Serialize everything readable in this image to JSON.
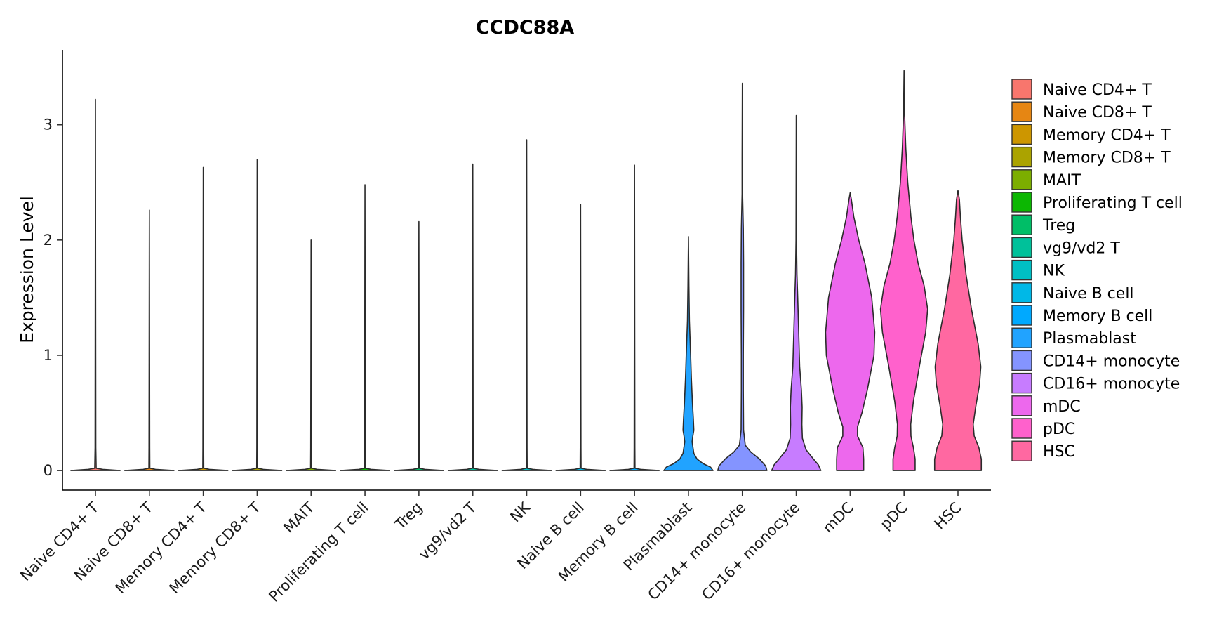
{
  "chart_data": {
    "type": "violin",
    "title": "CCDC88A",
    "xlabel": "",
    "ylabel": "Expression Level",
    "ylim": [
      -0.17,
      3.65
    ],
    "yticks": [
      0,
      1,
      2,
      3
    ],
    "legend_position": "right",
    "categories": [
      "Naive CD4+ T",
      "Naive CD8+ T",
      "Memory CD4+ T",
      "Memory CD8+ T",
      "MAIT",
      "Proliferating T cell",
      "Treg",
      "vg9/vd2 T",
      "NK",
      "Naive B cell",
      "Memory B cell",
      "Plasmablast",
      "CD14+ monocyte",
      "CD16+ monocyte",
      "mDC",
      "pDC",
      "HSC"
    ],
    "colors": [
      "#F8766D",
      "#E68613",
      "#CD9600",
      "#ABA300",
      "#7CAE00",
      "#0CB702",
      "#00BE67",
      "#00C19A",
      "#00BFC4",
      "#00B8E7",
      "#00A9FF",
      "#21A3FF",
      "#8494FF",
      "#C77CFF",
      "#ED68ED",
      "#FF61CC",
      "#FF68A1"
    ],
    "series": [
      {
        "name": "Naive CD4+ T",
        "max": 3.22,
        "profile": [
          [
            0,
            1.0
          ],
          [
            0.01,
            0.3
          ],
          [
            0.02,
            0.03
          ],
          [
            0.2,
            0.015
          ],
          [
            3.22,
            0
          ]
        ]
      },
      {
        "name": "Naive CD8+ T",
        "max": 2.26,
        "profile": [
          [
            0,
            1.0
          ],
          [
            0.01,
            0.25
          ],
          [
            0.02,
            0.02
          ],
          [
            0.2,
            0.015
          ],
          [
            2.26,
            0
          ]
        ]
      },
      {
        "name": "Memory CD4+ T",
        "max": 2.63,
        "profile": [
          [
            0,
            1.0
          ],
          [
            0.01,
            0.25
          ],
          [
            0.02,
            0.02
          ],
          [
            0.2,
            0.015
          ],
          [
            2.63,
            0
          ]
        ]
      },
      {
        "name": "Memory CD8+ T",
        "max": 2.7,
        "profile": [
          [
            0,
            1.0
          ],
          [
            0.01,
            0.25
          ],
          [
            0.02,
            0.02
          ],
          [
            0.2,
            0.015
          ],
          [
            2.7,
            0
          ]
        ]
      },
      {
        "name": "MAIT",
        "max": 2.0,
        "profile": [
          [
            0,
            1.0
          ],
          [
            0.01,
            0.25
          ],
          [
            0.02,
            0.02
          ],
          [
            0.2,
            0.015
          ],
          [
            2.0,
            0
          ]
        ]
      },
      {
        "name": "Proliferating T cell",
        "max": 2.48,
        "profile": [
          [
            0,
            1.0
          ],
          [
            0.01,
            0.25
          ],
          [
            0.02,
            0.02
          ],
          [
            0.2,
            0.015
          ],
          [
            2.48,
            0
          ]
        ]
      },
      {
        "name": "Treg",
        "max": 2.16,
        "profile": [
          [
            0,
            1.0
          ],
          [
            0.01,
            0.25
          ],
          [
            0.02,
            0.02
          ],
          [
            0.2,
            0.015
          ],
          [
            2.16,
            0
          ]
        ]
      },
      {
        "name": "vg9/vd2 T",
        "max": 2.66,
        "profile": [
          [
            0,
            1.0
          ],
          [
            0.01,
            0.25
          ],
          [
            0.02,
            0.02
          ],
          [
            0.2,
            0.015
          ],
          [
            2.66,
            0
          ]
        ]
      },
      {
        "name": "NK",
        "max": 2.87,
        "profile": [
          [
            0,
            1.0
          ],
          [
            0.01,
            0.25
          ],
          [
            0.02,
            0.02
          ],
          [
            0.2,
            0.015
          ],
          [
            2.87,
            0
          ]
        ]
      },
      {
        "name": "Naive B cell",
        "max": 2.31,
        "profile": [
          [
            0,
            1.0
          ],
          [
            0.01,
            0.25
          ],
          [
            0.02,
            0.02
          ],
          [
            0.2,
            0.015
          ],
          [
            2.31,
            0
          ]
        ]
      },
      {
        "name": "Memory B cell",
        "max": 2.65,
        "profile": [
          [
            0,
            1.0
          ],
          [
            0.01,
            0.25
          ],
          [
            0.02,
            0.02
          ],
          [
            0.2,
            0.015
          ],
          [
            2.65,
            0
          ]
        ]
      },
      {
        "name": "Plasmablast",
        "max": 2.03,
        "profile": [
          [
            0,
            1.0
          ],
          [
            0.03,
            0.9
          ],
          [
            0.06,
            0.6
          ],
          [
            0.1,
            0.35
          ],
          [
            0.15,
            0.22
          ],
          [
            0.25,
            0.15
          ],
          [
            0.3,
            0.18
          ],
          [
            0.35,
            0.22
          ],
          [
            0.45,
            0.2
          ],
          [
            0.6,
            0.16
          ],
          [
            0.8,
            0.12
          ],
          [
            1.0,
            0.09
          ],
          [
            1.3,
            0.04
          ],
          [
            1.6,
            0.02
          ],
          [
            2.03,
            0
          ]
        ]
      },
      {
        "name": "CD14+ monocyte",
        "max": 3.36,
        "profile": [
          [
            0,
            1.0
          ],
          [
            0.04,
            0.95
          ],
          [
            0.1,
            0.7
          ],
          [
            0.16,
            0.35
          ],
          [
            0.22,
            0.12
          ],
          [
            0.35,
            0.05
          ],
          [
            0.7,
            0.04
          ],
          [
            1.0,
            0.04
          ],
          [
            1.4,
            0.05
          ],
          [
            1.8,
            0.05
          ],
          [
            2.1,
            0.04
          ],
          [
            2.4,
            0.01
          ],
          [
            2.7,
            0.01
          ],
          [
            3.36,
            0
          ]
        ]
      },
      {
        "name": "CD16+ monocyte",
        "max": 3.08,
        "profile": [
          [
            0,
            1.0
          ],
          [
            0.05,
            0.9
          ],
          [
            0.1,
            0.7
          ],
          [
            0.18,
            0.4
          ],
          [
            0.28,
            0.25
          ],
          [
            0.4,
            0.23
          ],
          [
            0.55,
            0.24
          ],
          [
            0.7,
            0.21
          ],
          [
            0.9,
            0.14
          ],
          [
            1.2,
            0.1
          ],
          [
            1.5,
            0.06
          ],
          [
            1.7,
            0.03
          ],
          [
            2.0,
            0.01
          ],
          [
            3.08,
            0
          ]
        ]
      },
      {
        "name": "mDC",
        "max": 2.41,
        "profile": [
          [
            0,
            0.55
          ],
          [
            0.1,
            0.55
          ],
          [
            0.2,
            0.52
          ],
          [
            0.3,
            0.3
          ],
          [
            0.38,
            0.3
          ],
          [
            0.5,
            0.48
          ],
          [
            0.7,
            0.7
          ],
          [
            1.0,
            0.97
          ],
          [
            1.2,
            1.0
          ],
          [
            1.5,
            0.88
          ],
          [
            1.8,
            0.6
          ],
          [
            2.0,
            0.35
          ],
          [
            2.2,
            0.15
          ],
          [
            2.35,
            0.05
          ],
          [
            2.41,
            0
          ]
        ]
      },
      {
        "name": "pDC",
        "max": 3.47,
        "profile": [
          [
            0,
            0.45
          ],
          [
            0.1,
            0.45
          ],
          [
            0.2,
            0.38
          ],
          [
            0.3,
            0.28
          ],
          [
            0.4,
            0.27
          ],
          [
            0.6,
            0.38
          ],
          [
            0.9,
            0.62
          ],
          [
            1.2,
            0.88
          ],
          [
            1.4,
            0.96
          ],
          [
            1.6,
            0.82
          ],
          [
            1.8,
            0.57
          ],
          [
            2.0,
            0.4
          ],
          [
            2.2,
            0.28
          ],
          [
            2.5,
            0.15
          ],
          [
            2.8,
            0.07
          ],
          [
            3.1,
            0.02
          ],
          [
            3.47,
            0
          ]
        ]
      },
      {
        "name": "HSC",
        "max": 2.43,
        "profile": [
          [
            0,
            0.95
          ],
          [
            0.1,
            0.95
          ],
          [
            0.2,
            0.85
          ],
          [
            0.3,
            0.66
          ],
          [
            0.4,
            0.62
          ],
          [
            0.55,
            0.72
          ],
          [
            0.75,
            0.88
          ],
          [
            0.9,
            0.93
          ],
          [
            1.1,
            0.82
          ],
          [
            1.4,
            0.55
          ],
          [
            1.7,
            0.33
          ],
          [
            2.0,
            0.17
          ],
          [
            2.2,
            0.1
          ],
          [
            2.35,
            0.06
          ],
          [
            2.43,
            0
          ]
        ]
      }
    ]
  }
}
